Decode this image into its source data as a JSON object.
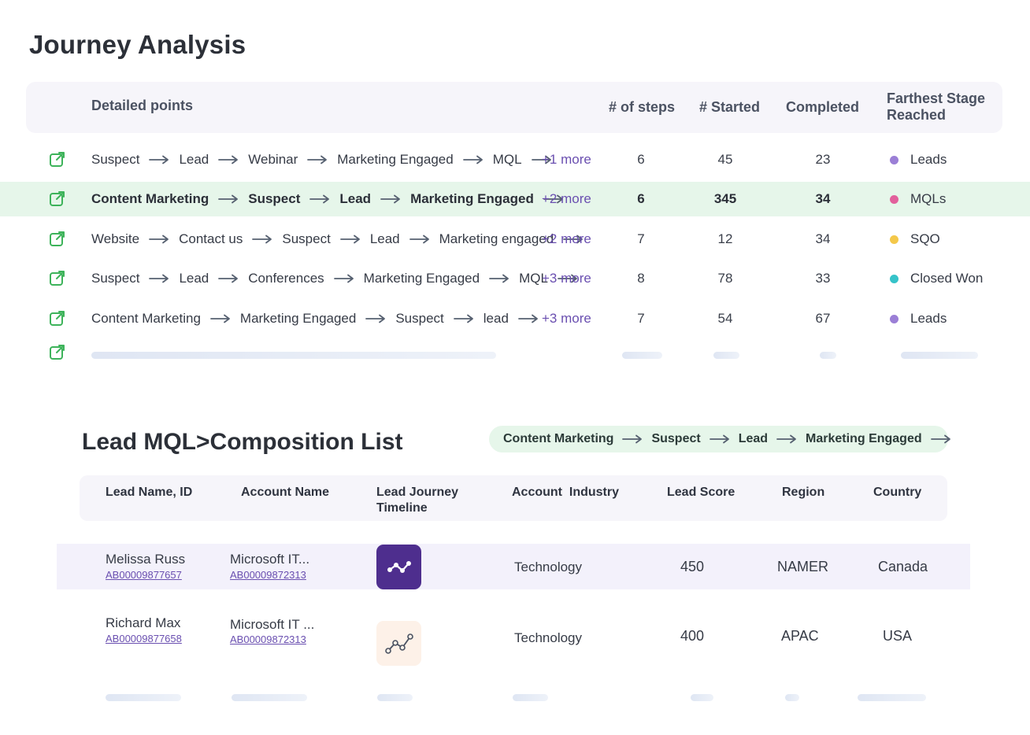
{
  "journey": {
    "title": "Journey Analysis",
    "headers": {
      "detailed": "Detailed points",
      "steps": "# of steps",
      "started": "# Started",
      "completed": "Completed",
      "farthest_1": "Farthest Stage",
      "farthest_2": "Reached"
    },
    "rows": [
      {
        "path": [
          "Suspect",
          "Lead",
          "Webinar",
          "Marketing Engaged",
          "MQL"
        ],
        "more": "+1 more",
        "steps": "6",
        "started": "45",
        "completed": "23",
        "stage": "Leads",
        "stage_color": "#9b7fd6",
        "highlighted": false
      },
      {
        "path": [
          "Content Marketing",
          "Suspect",
          "Lead",
          "Marketing Engaged"
        ],
        "more": "+2 more",
        "steps": "6",
        "started": "345",
        "completed": "34",
        "stage": "MQLs",
        "stage_color": "#e2609c",
        "highlighted": true
      },
      {
        "path": [
          "Website",
          "Contact us",
          "Suspect",
          "Lead",
          "Marketing engaged"
        ],
        "more": "+2 more",
        "steps": "7",
        "started": "12",
        "completed": "34",
        "stage": "SQO",
        "stage_color": "#f4c84a",
        "highlighted": false
      },
      {
        "path": [
          "Suspect",
          "Lead",
          "Conferences",
          "Marketing Engaged",
          "MQL"
        ],
        "more": "+3 more",
        "steps": "8",
        "started": "78",
        "completed": "33",
        "stage": "Closed Won",
        "stage_color": "#36c3c9",
        "highlighted": false
      },
      {
        "path": [
          "Content Marketing",
          "Marketing Engaged",
          "Suspect",
          "lead"
        ],
        "more": "+3 more",
        "steps": "7",
        "started": "54",
        "completed": "67",
        "stage": "Leads",
        "stage_color": "#9b7fd6",
        "highlighted": false
      }
    ]
  },
  "composition": {
    "title": "Lead MQL>Composition List",
    "journey_pill": [
      "Content Marketing",
      "Suspect",
      "Lead",
      "Marketing Engaged"
    ],
    "headers": {
      "lead": "Lead Name, ID",
      "account": "Account Name",
      "timeline_1": "Lead Journey",
      "timeline_2": "Timeline",
      "industry": "Account  Industry",
      "score": "Lead Score",
      "region": "Region",
      "country": "Country"
    },
    "rows": [
      {
        "name": "Melissa Russ",
        "lead_id": "AB00009877657",
        "account": "Microsoft IT...",
        "account_id": "AB00009872313",
        "industry": "Technology",
        "score": "450",
        "region": "NAMER",
        "country": "Canada",
        "highlighted": true
      },
      {
        "name": "Richard Max",
        "lead_id": "AB00009877658",
        "account": "Microsoft IT ...",
        "account_id": "AB00009872313",
        "industry": "Technology",
        "score": "400",
        "region": "APAC",
        "country": "USA",
        "highlighted": false
      }
    ]
  },
  "icons": {
    "open_link": "external-link-icon",
    "timeline": "journey-timeline-icon",
    "arrow": "arrow-right-icon"
  },
  "colors": {
    "accent_green": "#3db35a",
    "link_purple": "#6a4fb0",
    "highlight_green": "#e6f6ea",
    "highlight_purple": "#f3f1fb"
  }
}
